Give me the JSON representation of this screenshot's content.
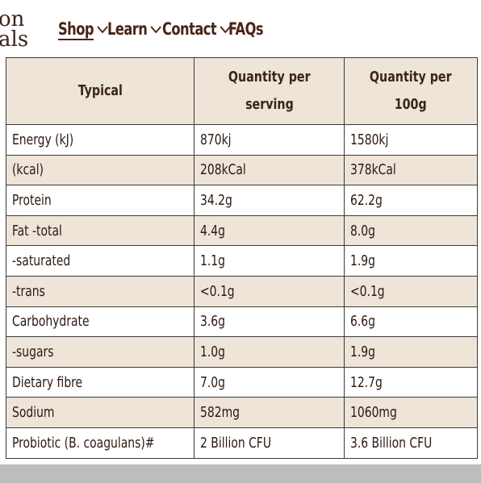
{
  "logo": {
    "line1": "on",
    "line2": "als"
  },
  "nav": {
    "items": [
      {
        "label": "Shop",
        "has_dropdown": true,
        "active": true
      },
      {
        "label": "Learn",
        "has_dropdown": true
      },
      {
        "label": "Contact",
        "has_dropdown": true
      },
      {
        "label": "FAQs",
        "has_dropdown": false
      }
    ]
  },
  "table": {
    "headers": [
      "Typical",
      "Quantity per serving",
      "Quantity per 100g"
    ],
    "header_lines": {
      "col2": [
        "Quantity per",
        "serving"
      ],
      "col3": [
        "Quantity per",
        "100g"
      ]
    },
    "rows": [
      {
        "nutrient": "Energy (kJ)",
        "per_serving": "870kj",
        "per_100g": "1580kj"
      },
      {
        "nutrient": "(kcal)",
        "per_serving": "208kCal",
        "per_100g": "378kCal"
      },
      {
        "nutrient": "Protein",
        "per_serving": "34.2g",
        "per_100g": "62.2g"
      },
      {
        "nutrient": "Fat -total",
        "per_serving": "4.4g",
        "per_100g": "8.0g"
      },
      {
        "nutrient": "-saturated",
        "per_serving": "1.1g",
        "per_100g": "1.9g"
      },
      {
        "nutrient": "-trans",
        "per_serving": "<0.1g",
        "per_100g": "<0.1g"
      },
      {
        "nutrient": "Carbohydrate",
        "per_serving": "3.6g",
        "per_100g": "6.6g"
      },
      {
        "nutrient": "-sugars",
        "per_serving": "1.0g",
        "per_100g": "1.9g"
      },
      {
        "nutrient": "Dietary fibre",
        "per_serving": "7.0g",
        "per_100g": "12.7g"
      },
      {
        "nutrient": "Sodium",
        "per_serving": "582mg",
        "per_100g": "1060mg"
      },
      {
        "nutrient": "Probiotic (B. coagulans)#",
        "per_serving": "2 Billion CFU",
        "per_100g": "3.6 Billion CFU"
      }
    ]
  },
  "colors": {
    "brand_text": "#4a2416",
    "row_alt_bg": "#eee4d8",
    "footer_bar": "#bdbdbd"
  },
  "icons": {
    "dropdown": "chevron-down-icon"
  }
}
